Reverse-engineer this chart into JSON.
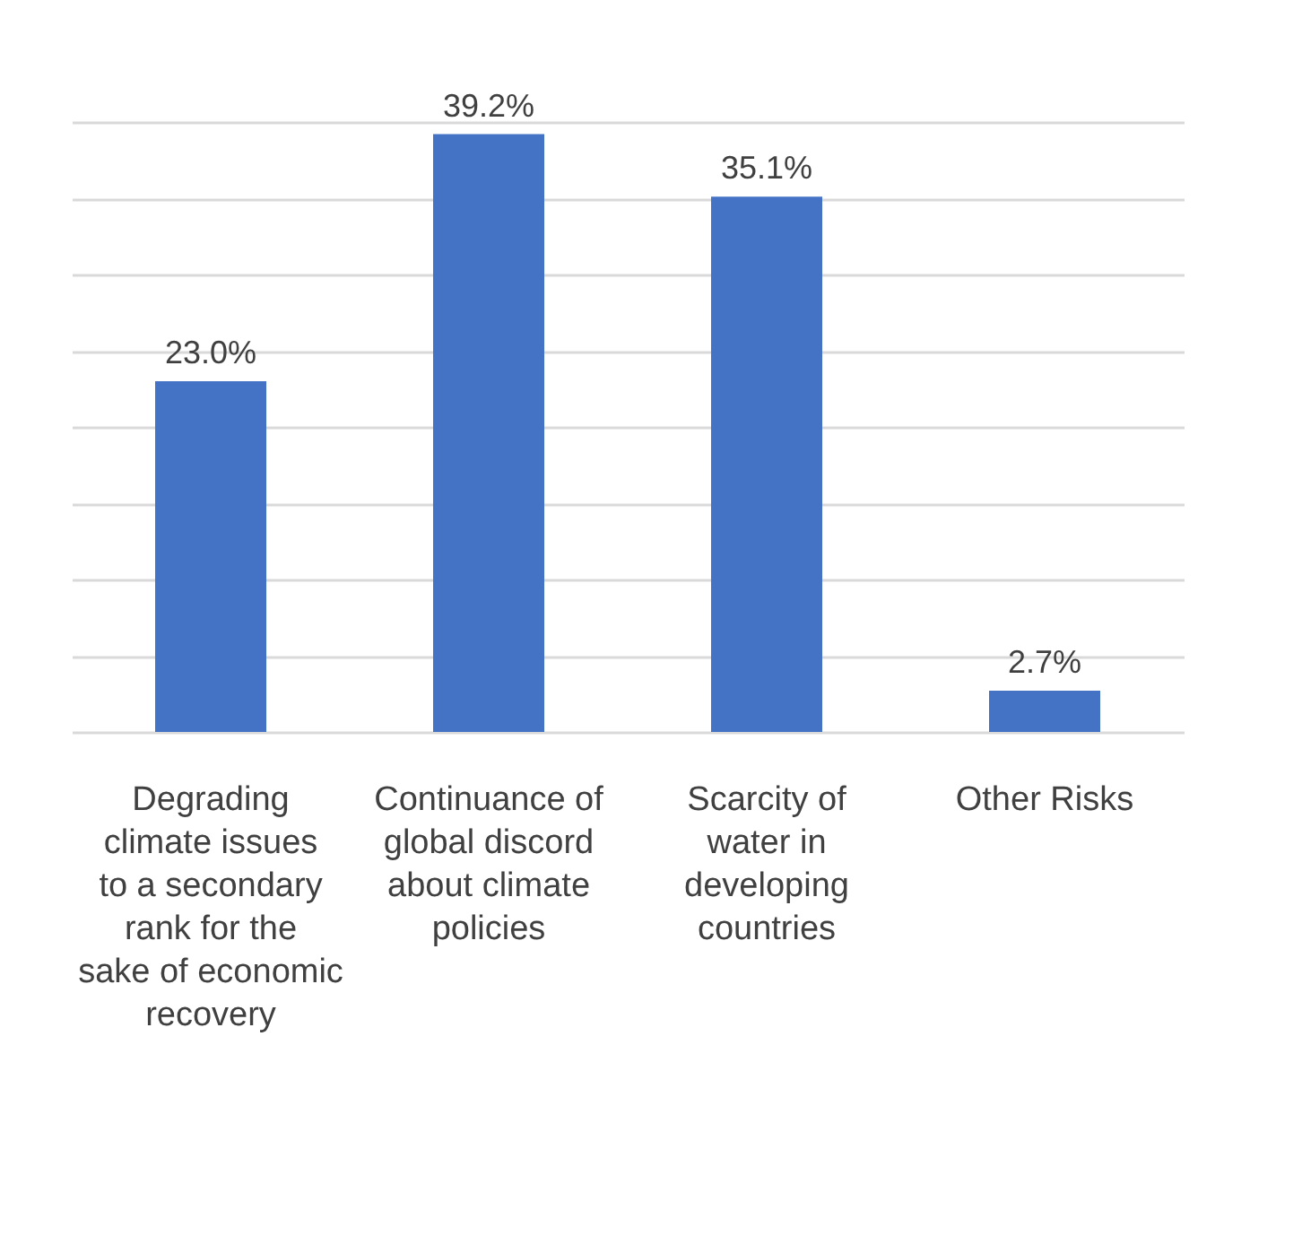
{
  "chart_data": {
    "type": "bar",
    "categories": [
      "Degrading climate issues to a secondary rank for the sake of economic recovery",
      "Continuance of global discord about climate policies",
      "Scarcity of water in developing countries",
      "Other Risks"
    ],
    "values": [
      23.0,
      39.2,
      35.1,
      2.7
    ],
    "value_labels": [
      "23.0%",
      "39.2%",
      "35.1%",
      "2.7%"
    ],
    "color": "#4472c4",
    "grid": "y",
    "tick_labels": "x"
  }
}
